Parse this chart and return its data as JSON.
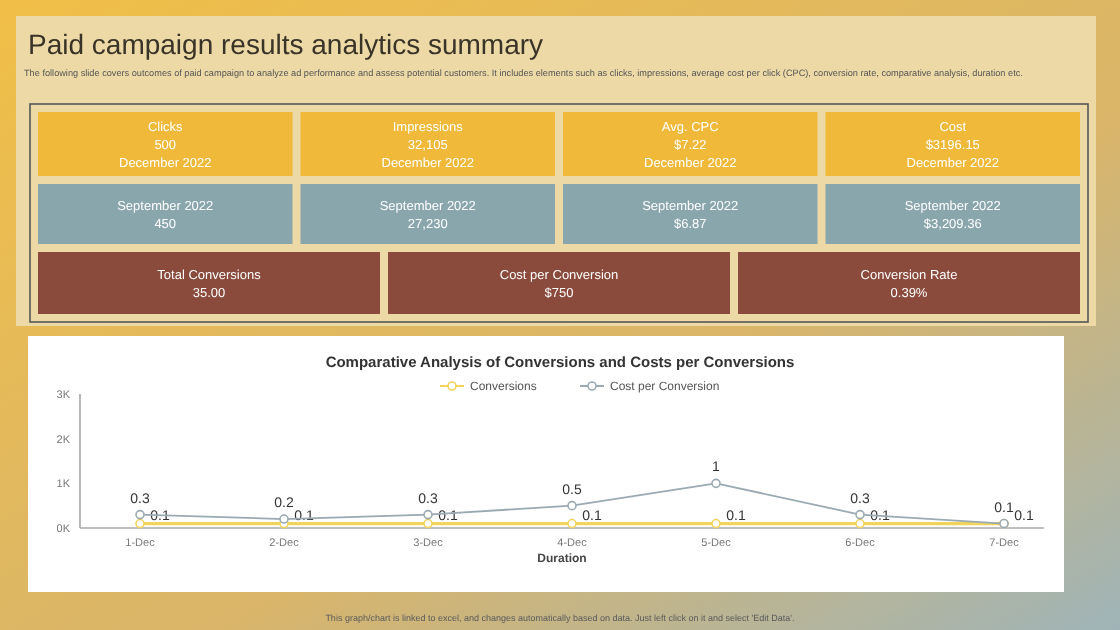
{
  "chart_data": [
    {
      "type": "other",
      "title": "Paid campaign results analytics summary",
      "subtitle": "The following slide covers outcomes of paid campaign to analyze ad performance and assess potential customers. It includes elements such as clicks, impressions, average cost per click (CPC), conversion rate, comparative analysis, duration etc.",
      "annotations": [
        "Clicks\n500\nDecember 2022",
        "Impressions\n32,105\nDecember 2022",
        "Avg. CPC\n$7.22\nDecember 2022",
        "Cost\n$3196.15\nDecember 2022",
        "September 2022\n450",
        "September 2022\n27,230",
        "September 2022\n$6.87",
        "September 2022\n$3,209.36",
        "Total Conversions\n35.00",
        "Cost per Conversion\n$750",
        "Conversion Rate\n0.39%"
      ],
      "colors": [
        "#f0b93a",
        "#f0b93a",
        "#f0b93a",
        "#f0b93a",
        "#8aa6ad",
        "#8aa6ad",
        "#8aa6ad",
        "#8aa6ad",
        "#8a4a3c",
        "#8a4a3c",
        "#8a4a3c"
      ]
    },
    {
      "type": "line",
      "title": "Comparative Analysis of Conversions and Costs per Conversions",
      "xlabel": "Duration",
      "categories": [
        "1-Dec",
        "2-Dec",
        "3-Dec",
        "4-Dec",
        "5-Dec",
        "6-Dec",
        "7-Dec"
      ],
      "series": [
        {
          "name": "Conversions",
          "color": "#f2d35c",
          "values": [
            0.1,
            0.1,
            0.1,
            0.1,
            0.1,
            0.1,
            0.1
          ]
        },
        {
          "name": "Cost per Conversion",
          "color": "#9aaab2",
          "values": [
            0.3,
            0.2,
            0.3,
            0.5,
            1,
            0.3,
            0.1
          ]
        }
      ],
      "data_labels": true,
      "ylim": [
        0,
        3
      ],
      "yticks": [
        {
          "value": 0,
          "label": "0K"
        },
        {
          "value": 1,
          "label": "1K"
        },
        {
          "value": 2,
          "label": "2K"
        },
        {
          "value": 3,
          "label": "3K"
        }
      ],
      "marker": "circle",
      "legend": "top",
      "grid": false,
      "annotations": [
        "This graph/chart is linked to excel, and changes automatically based on data. Just left click on it and select 'Edit Data'."
      ]
    }
  ]
}
